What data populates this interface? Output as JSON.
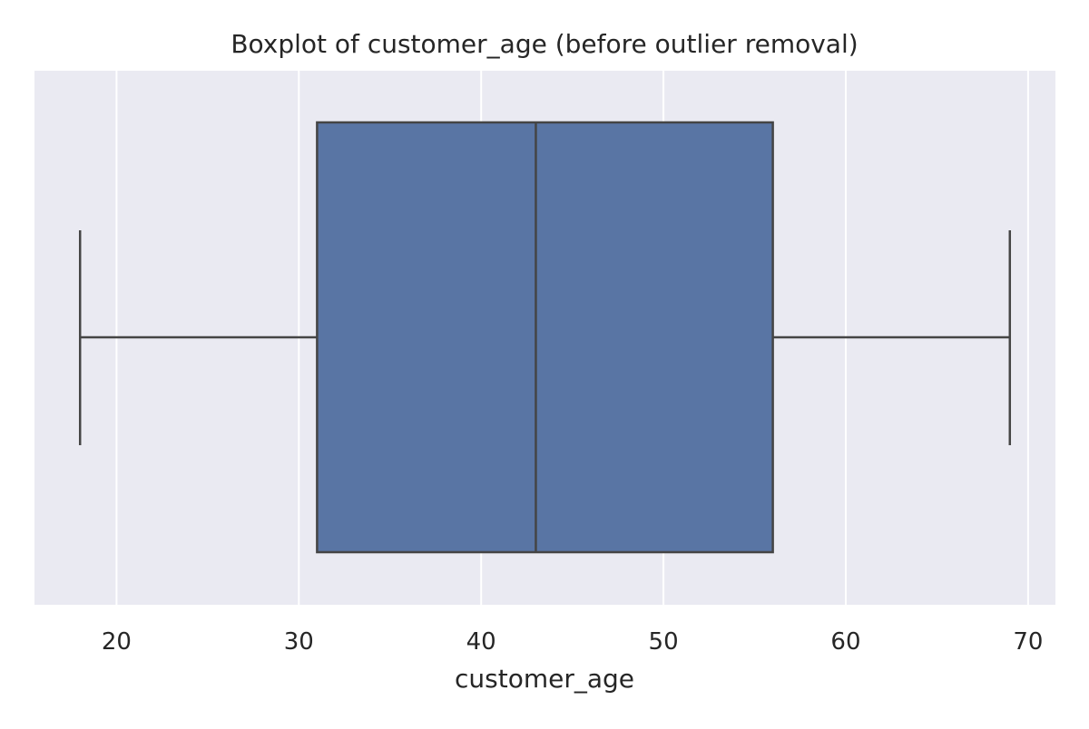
{
  "chart_data": {
    "type": "box",
    "title": "Boxplot of customer_age (before outlier removal)",
    "xlabel": "customer_age",
    "ylabel": "",
    "orientation": "horizontal",
    "xlim": [
      15.5,
      71.5
    ],
    "xticks": [
      20,
      30,
      40,
      50,
      60,
      70
    ],
    "xtick_labels": [
      "20",
      "30",
      "40",
      "50",
      "60",
      "70"
    ],
    "grid": true,
    "legend": "none",
    "series": [
      {
        "whisker_low": 18,
        "q1": 31,
        "median": 43,
        "q3": 56,
        "whisker_high": 69,
        "outliers": []
      }
    ],
    "colors": {
      "plot_background": "#EAEAF2",
      "grid": "#FFFFFF",
      "box_fill": "#5975A4",
      "line": "#454545",
      "text": "#262626"
    }
  }
}
